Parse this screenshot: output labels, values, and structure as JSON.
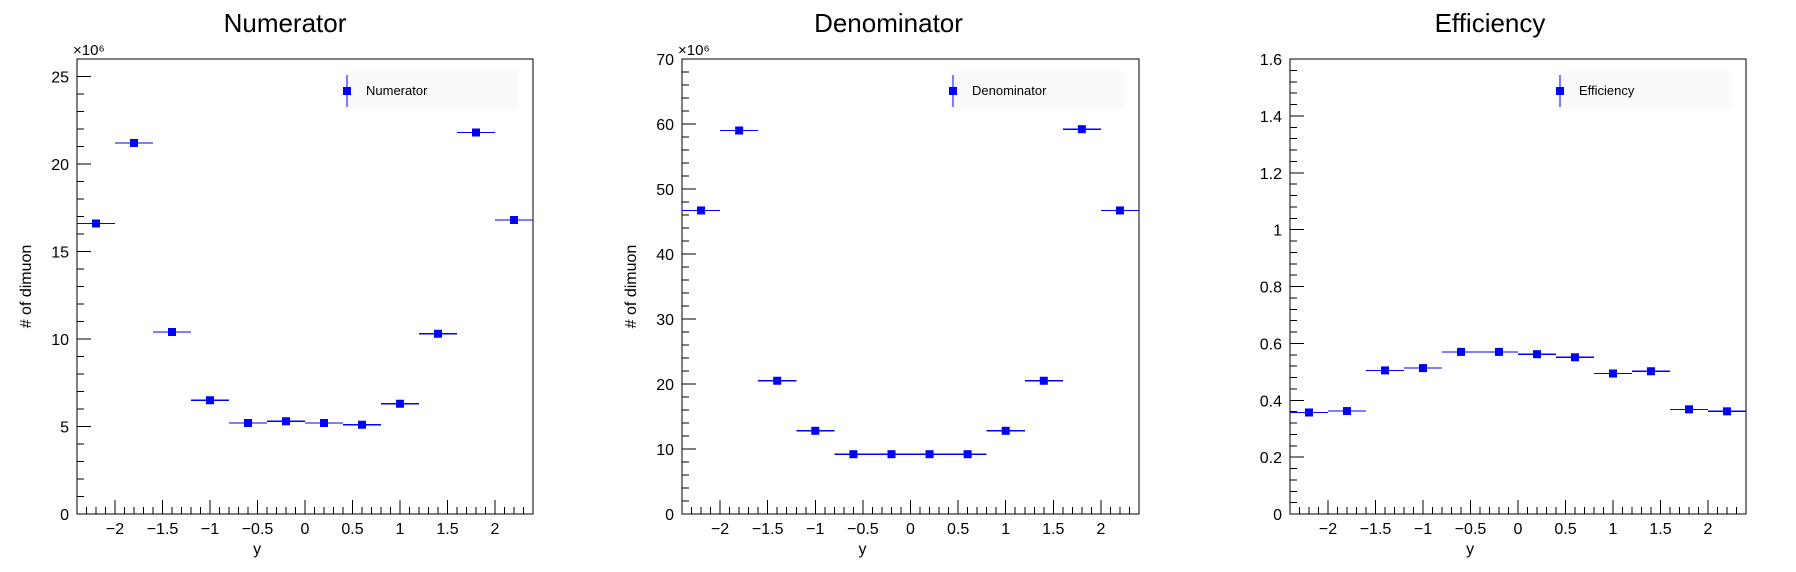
{
  "chart_data": [
    {
      "type": "scatter",
      "title": "Numerator",
      "xlabel": "y",
      "ylabel": "# of dimuon",
      "y_exponent_label": "×10⁶",
      "xlim": [
        -2.4,
        2.4
      ],
      "ylim": [
        0,
        26
      ],
      "x_ticks": [
        -2,
        -1.5,
        -1,
        -0.5,
        0,
        0.5,
        1,
        1.5,
        2
      ],
      "x_tick_labels": [
        "−2",
        "−1.5",
        "−1",
        "−0.5",
        "0",
        "0.5",
        "1",
        "1.5",
        "2"
      ],
      "y_ticks": [
        0,
        5,
        10,
        15,
        20,
        25
      ],
      "y_tick_labels": [
        "0",
        "5",
        "10",
        "15",
        "20",
        "25"
      ],
      "legend": "top-right",
      "legend_label": "Numerator",
      "marker_color": "#0000ff",
      "series": [
        {
          "name": "Numerator",
          "x": [
            -2.2,
            -1.8,
            -1.4,
            -1.0,
            -0.6,
            -0.2,
            0.2,
            0.6,
            1.0,
            1.4,
            1.8,
            2.2
          ],
          "y": [
            16.6,
            21.2,
            10.4,
            6.5,
            5.2,
            5.3,
            5.2,
            5.1,
            6.3,
            10.3,
            21.8,
            16.8
          ],
          "xerr": [
            0.2,
            0.2,
            0.2,
            0.2,
            0.2,
            0.2,
            0.2,
            0.2,
            0.2,
            0.2,
            0.2,
            0.2
          ]
        }
      ]
    },
    {
      "type": "scatter",
      "title": "Denominator",
      "xlabel": "y",
      "ylabel": "# of dimuon",
      "y_exponent_label": "×10⁶",
      "xlim": [
        -2.4,
        2.4
      ],
      "ylim": [
        0,
        70
      ],
      "x_ticks": [
        -2,
        -1.5,
        -1,
        -0.5,
        0,
        0.5,
        1,
        1.5,
        2
      ],
      "x_tick_labels": [
        "−2",
        "−1.5",
        "−1",
        "−0.5",
        "0",
        "0.5",
        "1",
        "1.5",
        "2"
      ],
      "y_ticks": [
        0,
        10,
        20,
        30,
        40,
        50,
        60,
        70
      ],
      "y_tick_labels": [
        "0",
        "10",
        "20",
        "30",
        "40",
        "50",
        "60",
        "70"
      ],
      "legend": "top-right",
      "legend_label": "Denominator",
      "marker_color": "#0000ff",
      "series": [
        {
          "name": "Denominator",
          "x": [
            -2.2,
            -1.8,
            -1.4,
            -1.0,
            -0.6,
            -0.2,
            0.2,
            0.6,
            1.0,
            1.4,
            1.8,
            2.2
          ],
          "y": [
            46.7,
            59.0,
            20.5,
            12.8,
            9.2,
            9.2,
            9.2,
            9.2,
            12.8,
            20.5,
            59.2,
            46.7
          ],
          "xerr": [
            0.2,
            0.2,
            0.2,
            0.2,
            0.2,
            0.2,
            0.2,
            0.2,
            0.2,
            0.2,
            0.2,
            0.2
          ]
        }
      ]
    },
    {
      "type": "scatter",
      "title": "Efficiency",
      "xlabel": "y",
      "ylabel": "",
      "y_exponent_label": "",
      "xlim": [
        -2.4,
        2.4
      ],
      "ylim": [
        0,
        1.6
      ],
      "x_ticks": [
        -2,
        -1.5,
        -1,
        -0.5,
        0,
        0.5,
        1,
        1.5,
        2
      ],
      "x_tick_labels": [
        "−2",
        "−1.5",
        "−1",
        "−0.5",
        "0",
        "0.5",
        "1",
        "1.5",
        "2"
      ],
      "y_ticks": [
        0,
        0.2,
        0.4,
        0.6,
        0.8,
        1.0,
        1.2,
        1.4,
        1.6
      ],
      "y_tick_labels": [
        "0",
        "0.2",
        "0.4",
        "0.6",
        "0.8",
        "1",
        "1.2",
        "1.4",
        "1.6"
      ],
      "legend": "top-right",
      "legend_label": "Efficiency",
      "marker_color": "#0000ff",
      "series": [
        {
          "name": "Efficiency",
          "x": [
            -2.2,
            -1.8,
            -1.4,
            -1.0,
            -0.6,
            -0.2,
            0.2,
            0.6,
            1.0,
            1.4,
            1.8,
            2.2
          ],
          "y": [
            0.357,
            0.362,
            0.505,
            0.513,
            0.57,
            0.57,
            0.562,
            0.551,
            0.494,
            0.502,
            0.368,
            0.361
          ],
          "xerr": [
            0.2,
            0.2,
            0.2,
            0.2,
            0.2,
            0.2,
            0.2,
            0.2,
            0.2,
            0.2,
            0.2,
            0.2
          ]
        }
      ]
    }
  ]
}
